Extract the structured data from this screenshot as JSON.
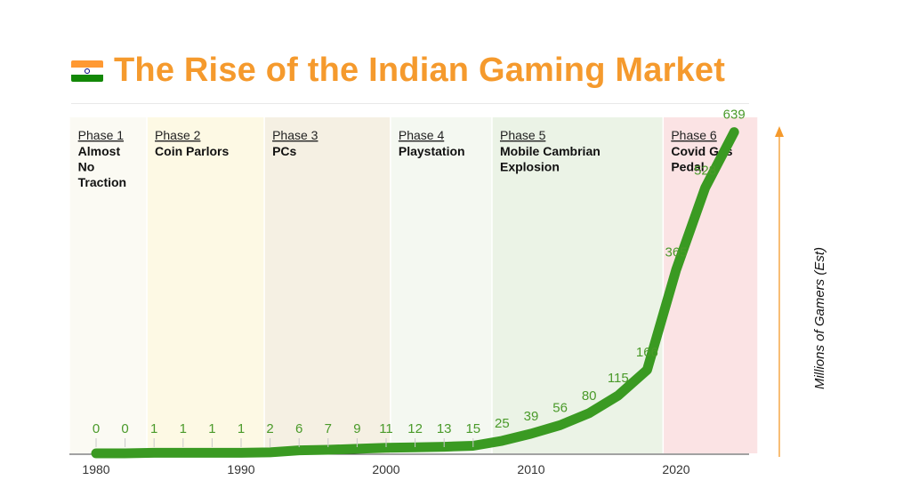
{
  "header": {
    "title": "The Rise of the Indian Gaming Market",
    "flag_icon": "india-flag-icon"
  },
  "chart_data": {
    "type": "area",
    "title": "The Rise of the Indian Gaming Market",
    "ylabel": "Millions of Gamers (Est)",
    "xlabel": "",
    "xlim": [
      1980,
      2025
    ],
    "ylim": [
      0,
      640
    ],
    "x_ticks": [
      1980,
      1990,
      2000,
      2010,
      2020
    ],
    "line_color": "#3a9a22",
    "points": [
      {
        "year": 1980,
        "value": 0
      },
      {
        "year": 1982,
        "value": 0
      },
      {
        "year": 1984,
        "value": 1
      },
      {
        "year": 1986,
        "value": 1
      },
      {
        "year": 1988,
        "value": 1
      },
      {
        "year": 1990,
        "value": 1
      },
      {
        "year": 1992,
        "value": 2
      },
      {
        "year": 1994,
        "value": 6
      },
      {
        "year": 1996,
        "value": 7
      },
      {
        "year": 1998,
        "value": 9
      },
      {
        "year": 2000,
        "value": 11
      },
      {
        "year": 2002,
        "value": 12
      },
      {
        "year": 2004,
        "value": 13
      },
      {
        "year": 2006,
        "value": 15
      },
      {
        "year": 2008,
        "value": 25
      },
      {
        "year": 2010,
        "value": 39
      },
      {
        "year": 2012,
        "value": 56
      },
      {
        "year": 2014,
        "value": 80
      },
      {
        "year": 2016,
        "value": 115
      },
      {
        "year": 2018,
        "value": 166
      },
      {
        "year": 2020,
        "value": 365
      },
      {
        "year": 2022,
        "value": 528
      },
      {
        "year": 2024,
        "value": 639
      }
    ],
    "phases": [
      {
        "label": "Phase 1",
        "name": [
          "Almost",
          "No",
          "Traction"
        ],
        "start": 1978.2,
        "end": 1983.5,
        "color": "#fbfaf3"
      },
      {
        "label": "Phase 2",
        "name": [
          "Coin Parlors"
        ],
        "start": 1983.5,
        "end": 1991.6,
        "color": "#fdf9e4"
      },
      {
        "label": "Phase 3",
        "name": [
          "PCs"
        ],
        "start": 1991.6,
        "end": 2000.3,
        "color": "#f5f0e3"
      },
      {
        "label": "Phase 4",
        "name": [
          "Playstation"
        ],
        "start": 2000.3,
        "end": 2007.3,
        "color": "#f4f8f1"
      },
      {
        "label": "Phase 5",
        "name": [
          "Mobile Cambrian",
          "Explosion"
        ],
        "start": 2007.3,
        "end": 2019.1,
        "color": "#ebf3e6"
      },
      {
        "label": "Phase 6",
        "name": [
          "Covid Gas",
          "Pedal"
        ],
        "start": 2019.1,
        "end": 2025.6,
        "color": "#fbe3e4"
      }
    ]
  }
}
